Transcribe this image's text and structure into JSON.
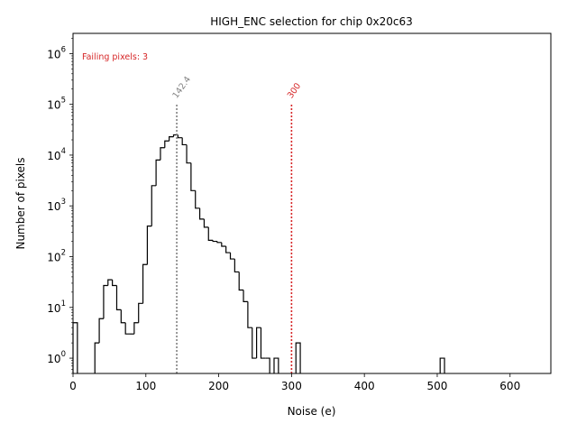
{
  "chart_data": {
    "type": "histogram",
    "title": "HIGH_ENC selection for chip 0x20c63",
    "xlabel": "Noise (e)",
    "ylabel": "Number of pixels",
    "xlim": [
      0,
      656
    ],
    "ylim": [
      0.5,
      2500000
    ],
    "yscale": "log",
    "grid": false,
    "xticks": [
      0,
      100,
      200,
      300,
      400,
      500,
      600
    ],
    "yticks": [
      {
        "value": 1,
        "base": "10",
        "exp": "0"
      },
      {
        "value": 10,
        "base": "10",
        "exp": "1"
      },
      {
        "value": 100,
        "base": "10",
        "exp": "2"
      },
      {
        "value": 1000,
        "base": "10",
        "exp": "3"
      },
      {
        "value": 10000,
        "base": "10",
        "exp": "4"
      },
      {
        "value": 100000,
        "base": "10",
        "exp": "5"
      },
      {
        "value": 1000000,
        "base": "10",
        "exp": "6"
      }
    ],
    "bin_width": 6,
    "bins": [
      [
        0,
        5
      ],
      [
        30,
        2
      ],
      [
        36,
        6
      ],
      [
        42,
        27
      ],
      [
        48,
        35
      ],
      [
        54,
        27
      ],
      [
        60,
        9
      ],
      [
        66,
        5
      ],
      [
        72,
        3
      ],
      [
        78,
        3
      ],
      [
        84,
        5
      ],
      [
        90,
        12
      ],
      [
        96,
        70
      ],
      [
        102,
        400
      ],
      [
        108,
        2500
      ],
      [
        114,
        8000
      ],
      [
        120,
        14000
      ],
      [
        126,
        19000
      ],
      [
        132,
        23000
      ],
      [
        138,
        25000
      ],
      [
        144,
        22000
      ],
      [
        150,
        16000
      ],
      [
        156,
        7000
      ],
      [
        162,
        2000
      ],
      [
        168,
        900
      ],
      [
        174,
        550
      ],
      [
        180,
        380
      ],
      [
        186,
        210
      ],
      [
        192,
        200
      ],
      [
        198,
        190
      ],
      [
        204,
        160
      ],
      [
        210,
        120
      ],
      [
        216,
        90
      ],
      [
        222,
        50
      ],
      [
        228,
        22
      ],
      [
        234,
        13
      ],
      [
        240,
        4
      ],
      [
        246,
        1
      ],
      [
        252,
        4
      ],
      [
        258,
        1
      ],
      [
        264,
        1
      ],
      [
        276,
        1
      ],
      [
        306,
        2
      ],
      [
        504,
        1
      ]
    ],
    "mean_line": {
      "x": 142.4,
      "label": "142.4",
      "color": "#808080"
    },
    "threshold_line": {
      "x": 300,
      "label": "300",
      "color": "#d62728"
    },
    "annotation": {
      "text": "Failing pixels: 3",
      "color": "#d62728"
    }
  }
}
